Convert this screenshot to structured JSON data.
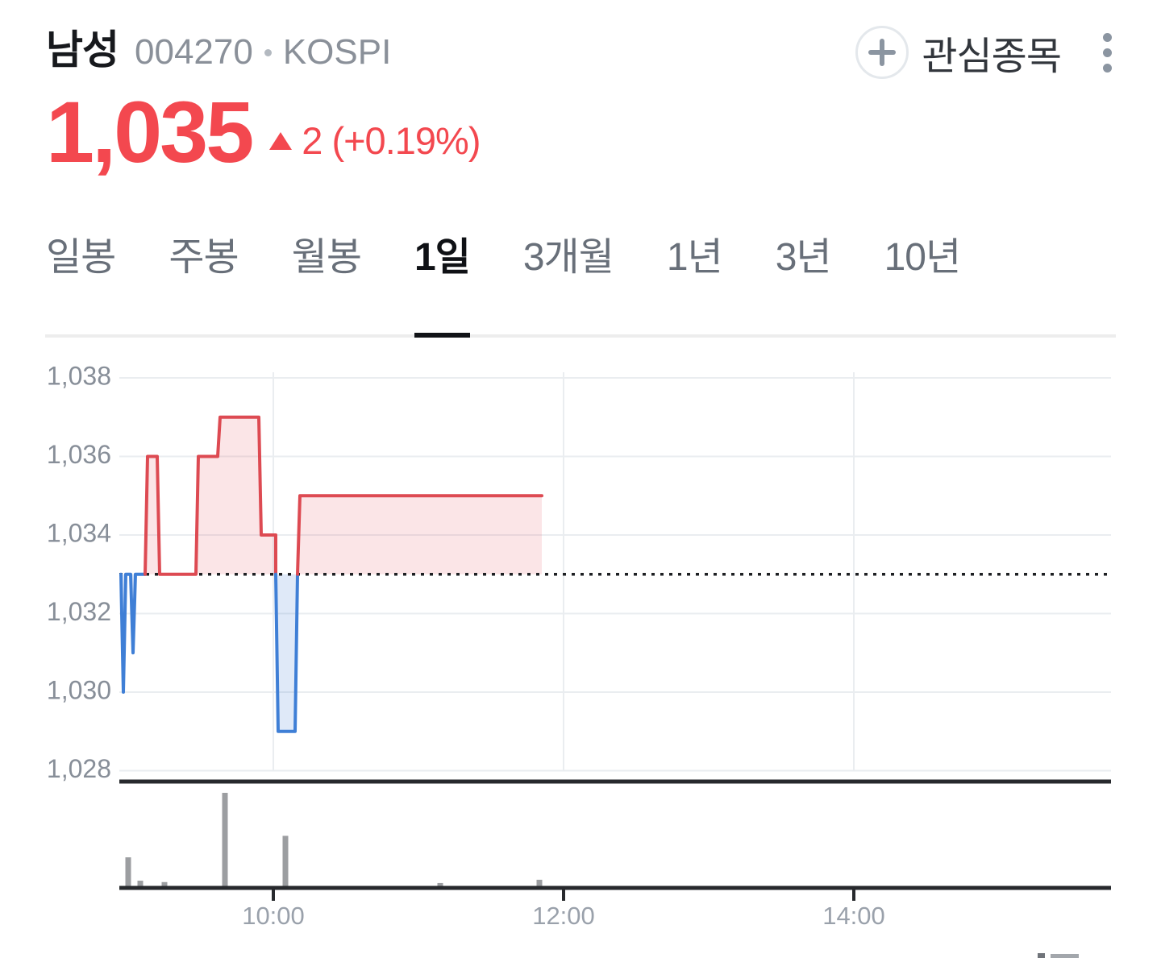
{
  "header": {
    "stock_name": "남성",
    "stock_code": "004270",
    "market": "KOSPI",
    "price": "1,035",
    "change_arrow": "▲",
    "change_text": "2 (+0.19%)",
    "watchlist_label": "관심종목",
    "accent_red": "#f3484f"
  },
  "tabs": [
    {
      "label": "일봉",
      "active": false
    },
    {
      "label": "주봉",
      "active": false
    },
    {
      "label": "월봉",
      "active": false
    },
    {
      "label": "1일",
      "active": true
    },
    {
      "label": "3개월",
      "active": false
    },
    {
      "label": "1년",
      "active": false
    },
    {
      "label": "3년",
      "active": false
    },
    {
      "label": "10년",
      "active": false
    }
  ],
  "chart_data": {
    "type": "area",
    "y_ticks": [
      "1,038",
      "1,036",
      "1,034",
      "1,032",
      "1,030",
      "1,028"
    ],
    "y_tick_values": [
      1038,
      1036,
      1034,
      1032,
      1030,
      1028
    ],
    "x_ticks": [
      "10:00",
      "12:00",
      "14:00"
    ],
    "ylim": [
      1027.4,
      1038.6
    ],
    "x_range": [
      "08:57",
      "15:47"
    ],
    "prev_close": 1033,
    "grid": true,
    "segments": [
      {
        "direction": "down",
        "points": [
          [
            "08:57",
            1033
          ],
          [
            "08:58",
            1030
          ],
          [
            "08:59",
            1033
          ],
          [
            "09:01",
            1033
          ],
          [
            "09:02",
            1031
          ],
          [
            "09:03",
            1033
          ],
          [
            "09:07",
            1033
          ]
        ]
      },
      {
        "direction": "up",
        "points": [
          [
            "09:07",
            1033
          ],
          [
            "09:08",
            1036
          ],
          [
            "09:12",
            1036
          ],
          [
            "09:13",
            1033
          ],
          [
            "09:28",
            1033
          ],
          [
            "09:29",
            1036
          ],
          [
            "09:37",
            1036
          ],
          [
            "09:38",
            1037
          ],
          [
            "09:54",
            1037
          ],
          [
            "09:55",
            1034
          ],
          [
            "10:01",
            1034
          ],
          [
            "10:01",
            1033
          ]
        ]
      },
      {
        "direction": "down",
        "points": [
          [
            "10:01",
            1033
          ],
          [
            "10:02",
            1029
          ],
          [
            "10:09",
            1029
          ],
          [
            "10:10",
            1033
          ]
        ]
      },
      {
        "direction": "up",
        "points": [
          [
            "10:10",
            1033
          ],
          [
            "10:11",
            1035
          ],
          [
            "11:51",
            1035
          ]
        ]
      }
    ],
    "volume": {
      "bars": [
        {
          "time": "09:00",
          "rel": 0.31
        },
        {
          "time": "09:05",
          "rel": 0.06
        },
        {
          "time": "09:15",
          "rel": 0.045
        },
        {
          "time": "09:40",
          "rel": 1.0
        },
        {
          "time": "10:05",
          "rel": 0.54
        },
        {
          "time": "11:09",
          "rel": 0.035
        },
        {
          "time": "11:50",
          "rel": 0.07
        }
      ]
    },
    "colors": {
      "up": "#dd4a52",
      "up_fill": "rgba(224,72,82,0.14)",
      "down": "#3f7fd6",
      "down_fill": "rgba(63,127,214,0.17)",
      "grid": "#eaedf0",
      "axis": "#27292d",
      "prev_close_line": "#1e2023",
      "volume_bar": "#9c9ea1",
      "y_label": "#878e98",
      "x_label": "#9aa1ab"
    }
  }
}
